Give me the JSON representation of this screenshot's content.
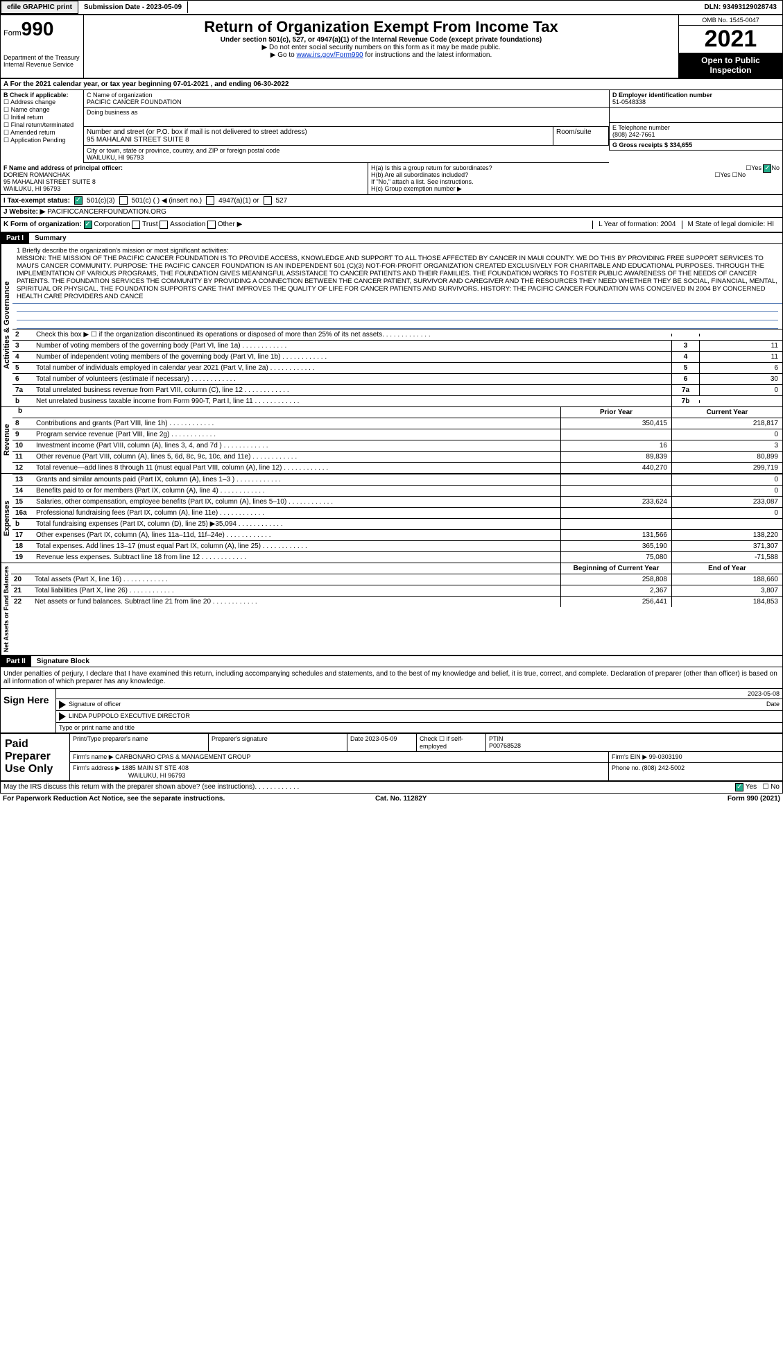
{
  "top": {
    "efile": "efile GRAPHIC print",
    "submission": "Submission Date - 2023-05-09",
    "dln": "DLN: 93493129028743"
  },
  "header": {
    "form": "Form",
    "num": "990",
    "dept": "Department of the Treasury Internal Revenue Service",
    "title": "Return of Organization Exempt From Income Tax",
    "sub": "Under section 501(c), 527, or 4947(a)(1) of the Internal Revenue Code (except private foundations)",
    "note1": "▶ Do not enter social security numbers on this form as it may be made public.",
    "note2_pre": "▶ Go to ",
    "note2_link": "www.irs.gov/Form990",
    "note2_post": " for instructions and the latest information.",
    "omb": "OMB No. 1545-0047",
    "year": "2021",
    "open": "Open to Public Inspection"
  },
  "rowA": "A   For the 2021 calendar year, or tax year beginning 07-01-2021   , and ending 06-30-2022",
  "colB": {
    "hdr": "B Check if applicable:",
    "items": [
      "☐ Address change",
      "☐ Name change",
      "☐ Initial return",
      "☐ Final return/terminated",
      "☐ Amended return",
      "☐ Application Pending"
    ]
  },
  "colC": {
    "c_lbl": "C Name of organization",
    "c_val": "PACIFIC CANCER FOUNDATION",
    "dba": "Doing business as",
    "addr_lbl": "Number and street (or P.O. box if mail is not delivered to street address)",
    "addr_val": "95 MAHALANI STREET SUITE 8",
    "room": "Room/suite",
    "city_lbl": "City or town, state or province, country, and ZIP or foreign postal code",
    "city_val": "WAILUKU, HI  96793"
  },
  "colD": {
    "d_lbl": "D Employer identification number",
    "d_val": "51-0548338",
    "e_lbl": "E Telephone number",
    "e_val": "(808) 242-7661",
    "g": "G Gross receipts $ 334,655"
  },
  "F": {
    "lbl": "F  Name and address of principal officer:",
    "v1": "DORIEN ROMANCHAK",
    "v2": "95 MAHALANI STREET SUITE 8",
    "v3": "WAILUKU, HI  96793"
  },
  "H": {
    "ha": "H(a)  Is this a group return for subordinates?",
    "hb": "H(b)  Are all subordinates included?",
    "hb2": "If \"No,\" attach a list. See instructions.",
    "hc": "H(c)  Group exemption number ▶",
    "yes": "Yes",
    "no": "No"
  },
  "I": {
    "lbl": "I   Tax-exempt status:",
    "a": "501(c)(3)",
    "b": "501(c) (  ) ◀ (insert no.)",
    "c": "4947(a)(1) or",
    "d": "527"
  },
  "J": {
    "lbl": "J   Website: ▶",
    "val": "PACIFICCANCERFOUNDATION.ORG"
  },
  "K": {
    "lbl": "K Form of organization:",
    "a": "Corporation",
    "b": "Trust",
    "c": "Association",
    "d": "Other ▶",
    "L": "L Year of formation: 2004",
    "M": "M State of legal domicile: HI"
  },
  "part1": {
    "hdr": "Part I",
    "title": "Summary"
  },
  "mission": {
    "lbl": "1   Briefly describe the organization's mission or most significant activities:",
    "txt": "MISSION: THE MISSION OF THE PACIFIC CANCER FOUNDATION IS TO PROVIDE ACCESS, KNOWLEDGE AND SUPPORT TO ALL THOSE AFFECTED BY CANCER IN MAUI COUNTY. WE DO THIS BY PROVIDING FREE SUPPORT SERVICES TO MAUI'S CANCER COMMUNITY. PURPOSE: THE PACIFIC CANCER FOUNDATION IS AN INDEPENDENT 501 (C)(3) NOT-FOR-PROFIT ORGANIZATION CREATED EXCLUSIVELY FOR CHARITABLE AND EDUCATIONAL PURPOSES. THROUGH THE IMPLEMENTATION OF VARIOUS PROGRAMS, THE FOUNDATION GIVES MEANINGFUL ASSISTANCE TO CANCER PATIENTS AND THEIR FAMILIES. THE FOUNDATION WORKS TO FOSTER PUBLIC AWARENESS OF THE NEEDS OF CANCER PATIENTS. THE FOUNDATION SERVICES THE COMMUNITY BY PROVIDING A CONNECTION BETWEEN THE CANCER PATIENT, SURVIVOR AND CAREGIVER AND THE RESOURCES THEY NEED WHETHER THEY BE SOCIAL, FINANCIAL, MENTAL, SPIRITUAL OR PHYSICAL. THE FOUNDATION SUPPORTS CARE THAT IMPROVES THE QUALITY OF LIFE FOR CANCER PATIENTS AND SURVIVORS. HISTORY: THE PACIFIC CANCER FOUNDATION WAS CONCEIVED IN 2004 BY CONCERNED HEALTH CARE PROVIDERS AND CANCE"
  },
  "gov_lines": [
    {
      "n": "2",
      "t": "Check this box ▶ ☐ if the organization discontinued its operations or disposed of more than 25% of its net assets.",
      "box": "",
      "val": ""
    },
    {
      "n": "3",
      "t": "Number of voting members of the governing body (Part VI, line 1a)",
      "box": "3",
      "val": "11"
    },
    {
      "n": "4",
      "t": "Number of independent voting members of the governing body (Part VI, line 1b)",
      "box": "4",
      "val": "11"
    },
    {
      "n": "5",
      "t": "Total number of individuals employed in calendar year 2021 (Part V, line 2a)",
      "box": "5",
      "val": "6"
    },
    {
      "n": "6",
      "t": "Total number of volunteers (estimate if necessary)",
      "box": "6",
      "val": "30"
    },
    {
      "n": "7a",
      "t": "Total unrelated business revenue from Part VIII, column (C), line 12",
      "box": "7a",
      "val": "0"
    },
    {
      "n": "b",
      "t": "Net unrelated business taxable income from Form 990-T, Part I, line 11",
      "box": "7b",
      "val": ""
    }
  ],
  "col_hdrs": {
    "prior": "Prior Year",
    "current": "Current Year",
    "beg": "Beginning of Current Year",
    "end": "End of Year"
  },
  "revenue": [
    {
      "n": "8",
      "t": "Contributions and grants (Part VIII, line 1h)",
      "v1": "350,415",
      "v2": "218,817"
    },
    {
      "n": "9",
      "t": "Program service revenue (Part VIII, line 2g)",
      "v1": "",
      "v2": "0"
    },
    {
      "n": "10",
      "t": "Investment income (Part VIII, column (A), lines 3, 4, and 7d )",
      "v1": "16",
      "v2": "3"
    },
    {
      "n": "11",
      "t": "Other revenue (Part VIII, column (A), lines 5, 6d, 8c, 9c, 10c, and 11e)",
      "v1": "89,839",
      "v2": "80,899"
    },
    {
      "n": "12",
      "t": "Total revenue—add lines 8 through 11 (must equal Part VIII, column (A), line 12)",
      "v1": "440,270",
      "v2": "299,719"
    }
  ],
  "expenses": [
    {
      "n": "13",
      "t": "Grants and similar amounts paid (Part IX, column (A), lines 1–3 )",
      "v1": "",
      "v2": "0"
    },
    {
      "n": "14",
      "t": "Benefits paid to or for members (Part IX, column (A), line 4)",
      "v1": "",
      "v2": "0"
    },
    {
      "n": "15",
      "t": "Salaries, other compensation, employee benefits (Part IX, column (A), lines 5–10)",
      "v1": "233,624",
      "v2": "233,087"
    },
    {
      "n": "16a",
      "t": "Professional fundraising fees (Part IX, column (A), line 11e)",
      "v1": "",
      "v2": "0"
    },
    {
      "n": "b",
      "t": "Total fundraising expenses (Part IX, column (D), line 25) ▶35,094",
      "v1": "grey",
      "v2": "grey"
    },
    {
      "n": "17",
      "t": "Other expenses (Part IX, column (A), lines 11a–11d, 11f–24e)",
      "v1": "131,566",
      "v2": "138,220"
    },
    {
      "n": "18",
      "t": "Total expenses. Add lines 13–17 (must equal Part IX, column (A), line 25)",
      "v1": "365,190",
      "v2": "371,307"
    },
    {
      "n": "19",
      "t": "Revenue less expenses. Subtract line 18 from line 12",
      "v1": "75,080",
      "v2": "-71,588"
    }
  ],
  "net": [
    {
      "n": "20",
      "t": "Total assets (Part X, line 16)",
      "v1": "258,808",
      "v2": "188,660"
    },
    {
      "n": "21",
      "t": "Total liabilities (Part X, line 26)",
      "v1": "2,367",
      "v2": "3,807"
    },
    {
      "n": "22",
      "t": "Net assets or fund balances. Subtract line 21 from line 20",
      "v1": "256,441",
      "v2": "184,853"
    }
  ],
  "side": {
    "gov": "Activities & Governance",
    "rev": "Revenue",
    "exp": "Expenses",
    "net": "Net Assets or Fund Balances"
  },
  "part2": {
    "hdr": "Part II",
    "title": "Signature Block"
  },
  "sig": {
    "decl": "Under penalties of perjury, I declare that I have examined this return, including accompanying schedules and statements, and to the best of my knowledge and belief, it is true, correct, and complete. Declaration of preparer (other than officer) is based on all information of which preparer has any knowledge.",
    "here": "Sign Here",
    "off": "Signature of officer",
    "date": "2023-05-08",
    "dt": "Date",
    "name": "LINDA PUPPOLO  EXECUTIVE DIRECTOR",
    "type": "Type or print name and title"
  },
  "prep": {
    "lbl": "Paid Preparer Use Only",
    "h1": "Print/Type preparer's name",
    "h2": "Preparer's signature",
    "h3": "Date 2023-05-09",
    "h4": "Check ☐ if self-employed",
    "h5": "PTIN",
    "ptin": "P00768528",
    "firm": "Firm's name    ▶ CARBONARO CPAS & MANAGEMENT GROUP",
    "ein": "Firm's EIN ▶ 99-0303190",
    "addr": "Firm's address ▶ 1885 MAIN ST STE 408",
    "addr2": "WAILUKU, HI  96793",
    "phone": "Phone no. (808) 242-5002"
  },
  "foot": {
    "q": "May the IRS discuss this return with the preparer shown above? (see instructions)",
    "yes": "Yes",
    "no": "No"
  },
  "bottom": {
    "l": "For Paperwork Reduction Act Notice, see the separate instructions.",
    "m": "Cat. No. 11282Y",
    "r": "Form 990 (2021)"
  }
}
